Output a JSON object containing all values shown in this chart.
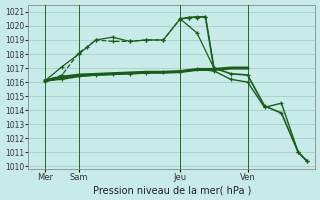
{
  "background_color": "#c8eae8",
  "grid_color": "#a0c8c0",
  "line_color": "#1a5c1a",
  "xlabel": "Pression niveau de la mer( hPa )",
  "ylim": [
    1009.8,
    1021.5
  ],
  "yticks": [
    1010,
    1011,
    1012,
    1013,
    1014,
    1015,
    1016,
    1017,
    1018,
    1019,
    1020,
    1021
  ],
  "xlim": [
    0,
    17
  ],
  "xtick_positions": [
    1,
    3,
    9,
    13
  ],
  "xtick_labels": [
    "Mer",
    "Sam",
    "Jeu",
    "Ven"
  ],
  "vline_positions": [
    1,
    3,
    9,
    13
  ],
  "series1_x": [
    1,
    2,
    3,
    3.5,
    4,
    5,
    6,
    7,
    8,
    9,
    9.5,
    10,
    10.5,
    11
  ],
  "series1_y": [
    1016.1,
    1016.5,
    1018.1,
    1018.5,
    1019.0,
    1018.9,
    1018.9,
    1019.0,
    1019.0,
    1020.5,
    1020.6,
    1020.6,
    1020.65,
    1017.0
  ],
  "series2_x": [
    1,
    2,
    3,
    4,
    5,
    6,
    7,
    8,
    9,
    10,
    11
  ],
  "series2_y": [
    1016.1,
    1017.1,
    1018.0,
    1019.0,
    1019.2,
    1018.9,
    1019.0,
    1019.0,
    1020.5,
    1019.5,
    1017.0
  ],
  "series3_x": [
    1,
    2,
    3,
    4,
    5,
    6,
    7,
    8,
    9,
    10,
    11,
    12,
    13
  ],
  "series3_y": [
    1016.1,
    1016.35,
    1016.5,
    1016.55,
    1016.6,
    1016.65,
    1016.7,
    1016.7,
    1016.75,
    1016.9,
    1016.9,
    1017.0,
    1017.0
  ],
  "series4_x": [
    1,
    2,
    3,
    4,
    5,
    6,
    7,
    8,
    9,
    10,
    11,
    12,
    13,
    14,
    15,
    16,
    16.5
  ],
  "series4_y": [
    1016.1,
    1016.2,
    1016.4,
    1016.5,
    1016.55,
    1016.6,
    1016.65,
    1016.7,
    1016.75,
    1016.9,
    1016.8,
    1016.2,
    1016.0,
    1014.2,
    1014.5,
    1011.0,
    1010.4
  ],
  "series5_x": [
    9,
    9.5,
    10,
    10.5,
    11,
    12,
    13,
    14,
    15,
    16,
    16.5
  ],
  "series5_y": [
    1020.5,
    1020.6,
    1020.65,
    1020.65,
    1017.0,
    1016.6,
    1016.5,
    1014.3,
    1013.8,
    1011.0,
    1010.4
  ]
}
